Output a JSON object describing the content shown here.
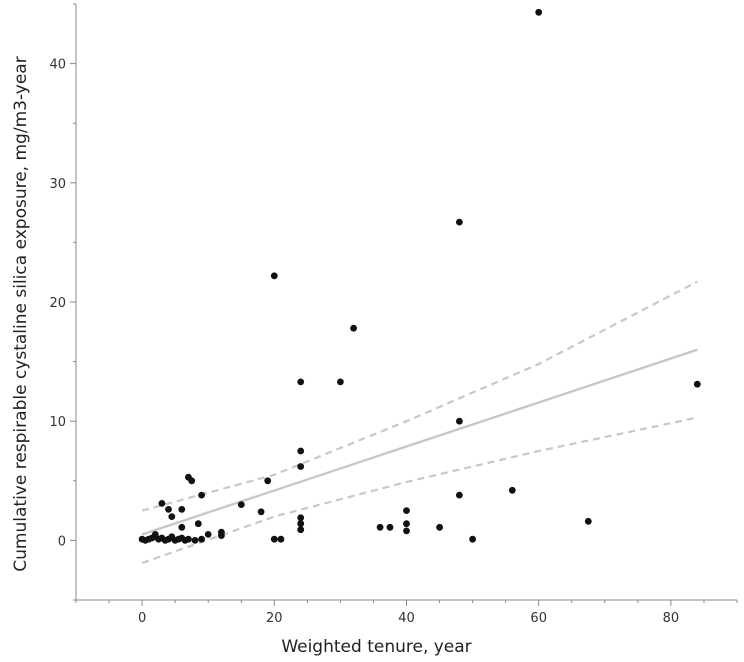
{
  "chart_data": {
    "type": "scatter",
    "title": "",
    "xlabel": "Weighted tenure, year",
    "ylabel": "Cumulative respirable cystaline silica exposure, mg/m3-year",
    "xlim": [
      -10,
      90
    ],
    "ylim": [
      -5,
      45
    ],
    "x_ticks": [
      0,
      20,
      40,
      60,
      80
    ],
    "y_ticks": [
      0,
      10,
      20,
      30,
      40
    ],
    "x_tick_labels": [
      "0",
      "20",
      "40",
      "60",
      "80"
    ],
    "y_tick_labels": [
      "0",
      "10",
      "20",
      "30",
      "40"
    ],
    "grid": false,
    "points": [
      [
        0,
        0.1
      ],
      [
        0.5,
        0.0
      ],
      [
        1.0,
        0.1
      ],
      [
        1.5,
        0.2
      ],
      [
        2.0,
        0.3
      ],
      [
        2.5,
        0.1
      ],
      [
        3.0,
        0.2
      ],
      [
        3.5,
        0.0
      ],
      [
        4.0,
        0.1
      ],
      [
        4.5,
        0.3
      ],
      [
        5.0,
        0.0
      ],
      [
        5.5,
        0.1
      ],
      [
        6.0,
        0.2
      ],
      [
        6.5,
        0.0
      ],
      [
        7.0,
        0.1
      ],
      [
        8.0,
        0.0
      ],
      [
        9.0,
        0.1
      ],
      [
        10.0,
        0.5
      ],
      [
        12.0,
        0.4
      ],
      [
        12.0,
        0.7
      ],
      [
        2.0,
        0.5
      ],
      [
        3.0,
        3.1
      ],
      [
        4.0,
        2.6
      ],
      [
        4.5,
        2.0
      ],
      [
        6.0,
        2.6
      ],
      [
        6.0,
        1.1
      ],
      [
        7.0,
        5.3
      ],
      [
        7.5,
        5.0
      ],
      [
        8.5,
        1.4
      ],
      [
        9.0,
        3.8
      ],
      [
        15.0,
        3.0
      ],
      [
        18.0,
        2.4
      ],
      [
        19.0,
        5.0
      ],
      [
        20.0,
        22.2
      ],
      [
        20.0,
        0.1
      ],
      [
        21.0,
        0.1
      ],
      [
        24.0,
        13.3
      ],
      [
        24.0,
        7.5
      ],
      [
        24.0,
        6.2
      ],
      [
        24.0,
        1.9
      ],
      [
        24.0,
        1.4
      ],
      [
        24.0,
        0.9
      ],
      [
        30.0,
        13.3
      ],
      [
        32.0,
        17.8
      ],
      [
        36.0,
        1.1
      ],
      [
        37.5,
        1.1
      ],
      [
        40.0,
        2.5
      ],
      [
        40.0,
        1.4
      ],
      [
        40.0,
        0.8
      ],
      [
        45.0,
        1.1
      ],
      [
        48.0,
        26.7
      ],
      [
        48.0,
        10.0
      ],
      [
        48.0,
        3.8
      ],
      [
        50.0,
        0.1
      ],
      [
        56.0,
        4.2
      ],
      [
        60.0,
        44.3
      ],
      [
        67.5,
        1.6
      ],
      [
        84.0,
        13.1
      ]
    ],
    "fit_line": [
      [
        0,
        0.5
      ],
      [
        84,
        16.0
      ]
    ],
    "ci_upper": [
      [
        0,
        2.5
      ],
      [
        20,
        5.5
      ],
      [
        40,
        10.0
      ],
      [
        60,
        14.8
      ],
      [
        84,
        21.7
      ]
    ],
    "ci_lower": [
      [
        0,
        -1.9
      ],
      [
        20,
        2.0
      ],
      [
        40,
        4.9
      ],
      [
        60,
        7.5
      ],
      [
        84,
        10.3
      ]
    ],
    "colors": {
      "points": "#111111",
      "fit_line": "#c8c8c8",
      "ci_lines": "#c8c8c8",
      "axis": "#888888",
      "text": "#333333"
    }
  }
}
